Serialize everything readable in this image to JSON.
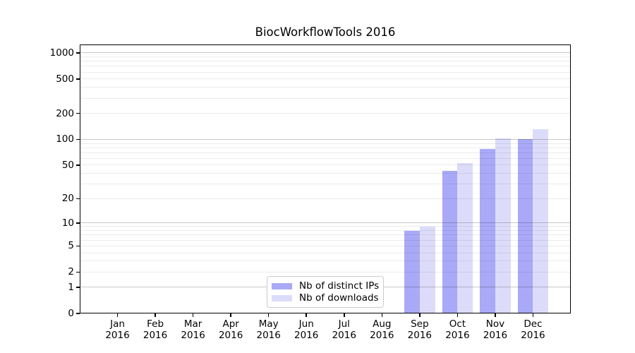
{
  "title": "BiocWorkflowTools 2016",
  "legend": {
    "items": [
      {
        "label": "Nb of distinct IPs",
        "color": "#a9a9f7"
      },
      {
        "label": "Nb of downloads",
        "color": "#dcdcfa"
      }
    ]
  },
  "chart_data": {
    "type": "bar",
    "title": "BiocWorkflowTools 2016",
    "categories": [
      "Jan 2016",
      "Feb 2016",
      "Mar 2016",
      "Apr 2016",
      "May 2016",
      "Jun 2016",
      "Jul 2016",
      "Aug 2016",
      "Sep 2016",
      "Oct 2016",
      "Nov 2016",
      "Dec 2016"
    ],
    "series": [
      {
        "name": "Nb of distinct IPs",
        "color": "#a9a9f7",
        "values": [
          0,
          0,
          0,
          0,
          0,
          0,
          0,
          0,
          8,
          43,
          78,
          100
        ]
      },
      {
        "name": "Nb of downloads",
        "color": "#dcdcfa",
        "values": [
          0,
          0,
          0,
          0,
          0,
          0,
          0,
          0,
          9,
          53,
          102,
          131
        ]
      }
    ],
    "y_scale": "log1p",
    "y_ticks": [
      0,
      1,
      2,
      5,
      10,
      20,
      50,
      100,
      200,
      500,
      1000
    ],
    "ylim": [
      0,
      1250
    ],
    "xlabel": "",
    "ylabel": "",
    "grid": "horizontal",
    "legend_position": "lower center"
  },
  "colors": {
    "major_grid": "#c9c9c9",
    "minor_grid": "#ececec",
    "spine": "#000000",
    "background": "#ffffff"
  }
}
